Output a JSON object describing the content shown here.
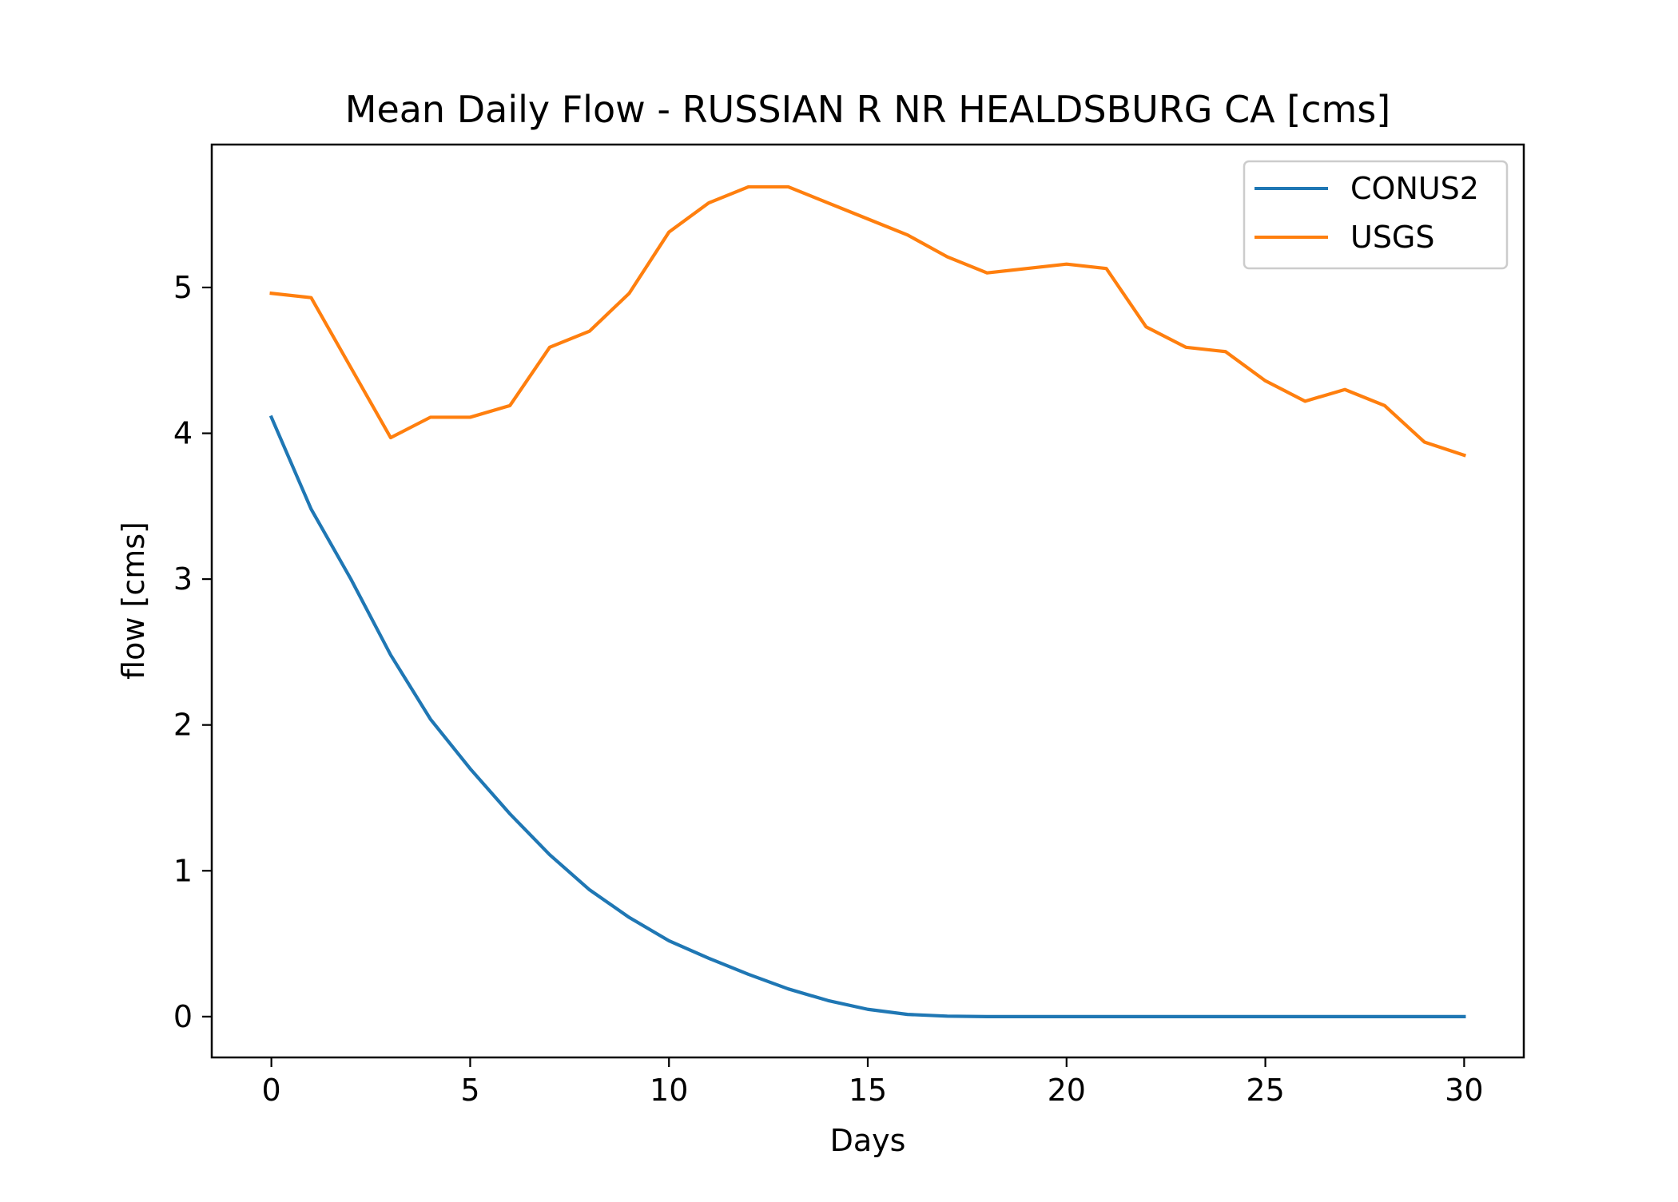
{
  "chart_data": {
    "type": "line",
    "title": "Mean Daily Flow - RUSSIAN R NR HEALDSBURG CA [cms]",
    "xlabel": "Days",
    "ylabel": "flow [cms]",
    "xlim": [
      -1.5,
      31.5
    ],
    "ylim": [
      -0.28,
      5.98
    ],
    "xticks": [
      0,
      5,
      10,
      15,
      20,
      25,
      30
    ],
    "yticks": [
      0,
      1,
      2,
      3,
      4,
      5
    ],
    "grid": false,
    "legend_position": "top-right",
    "x": [
      0,
      1,
      2,
      3,
      4,
      5,
      6,
      7,
      8,
      9,
      10,
      11,
      12,
      13,
      14,
      15,
      16,
      17,
      18,
      19,
      20,
      21,
      22,
      23,
      24,
      25,
      26,
      27,
      28,
      29,
      30
    ],
    "series": [
      {
        "name": "CONUS2",
        "color": "#1f77b4",
        "values": [
          4.11,
          3.48,
          3.0,
          2.48,
          2.04,
          1.7,
          1.39,
          1.11,
          0.87,
          0.68,
          0.52,
          0.4,
          0.29,
          0.19,
          0.11,
          0.05,
          0.015,
          0.003,
          0.0,
          0.0,
          0.0,
          0.0,
          0.0,
          0.0,
          0.0,
          0.0,
          0.0,
          0.0,
          0.0,
          0.0,
          0.0
        ]
      },
      {
        "name": "USGS",
        "color": "#ff7f0e",
        "values": [
          4.96,
          4.93,
          4.45,
          3.97,
          4.11,
          4.11,
          4.19,
          4.59,
          4.7,
          4.96,
          5.38,
          5.58,
          5.69,
          5.69,
          5.58,
          5.47,
          5.36,
          5.21,
          5.1,
          5.13,
          5.16,
          5.13,
          4.73,
          4.59,
          4.56,
          4.36,
          4.22,
          4.3,
          4.19,
          3.94,
          3.85
        ]
      }
    ]
  }
}
